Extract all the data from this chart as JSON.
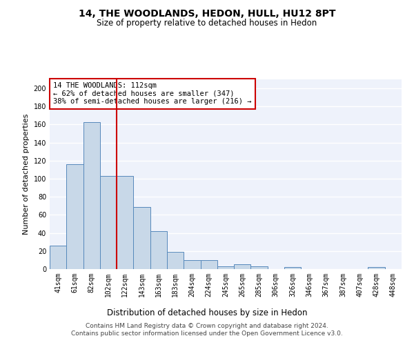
{
  "title": "14, THE WOODLANDS, HEDON, HULL, HU12 8PT",
  "subtitle": "Size of property relative to detached houses in Hedon",
  "xlabel": "Distribution of detached houses by size in Hedon",
  "ylabel": "Number of detached properties",
  "categories": [
    "41sqm",
    "61sqm",
    "82sqm",
    "102sqm",
    "122sqm",
    "143sqm",
    "163sqm",
    "183sqm",
    "204sqm",
    "224sqm",
    "245sqm",
    "265sqm",
    "285sqm",
    "306sqm",
    "326sqm",
    "346sqm",
    "367sqm",
    "387sqm",
    "407sqm",
    "428sqm",
    "448sqm"
  ],
  "values": [
    26,
    116,
    163,
    103,
    103,
    69,
    42,
    19,
    10,
    10,
    3,
    5,
    3,
    0,
    2,
    0,
    0,
    0,
    0,
    2,
    0
  ],
  "bar_color": "#c8d8e8",
  "bar_edge_color": "#5588bb",
  "vline_x": 3.5,
  "vline_color": "#cc0000",
  "annotation_text": "14 THE WOODLANDS: 112sqm\n← 62% of detached houses are smaller (347)\n38% of semi-detached houses are larger (216) →",
  "annotation_box_color": "#ffffff",
  "annotation_box_edge": "#cc0000",
  "ylim": [
    0,
    210
  ],
  "yticks": [
    0,
    20,
    40,
    60,
    80,
    100,
    120,
    140,
    160,
    180,
    200
  ],
  "background_color": "#eef2fb",
  "footer": "Contains HM Land Registry data © Crown copyright and database right 2024.\nContains public sector information licensed under the Open Government Licence v3.0.",
  "title_fontsize": 10,
  "subtitle_fontsize": 8.5,
  "xlabel_fontsize": 8.5,
  "ylabel_fontsize": 8,
  "tick_fontsize": 7,
  "footer_fontsize": 6.5,
  "annot_fontsize": 7.5
}
